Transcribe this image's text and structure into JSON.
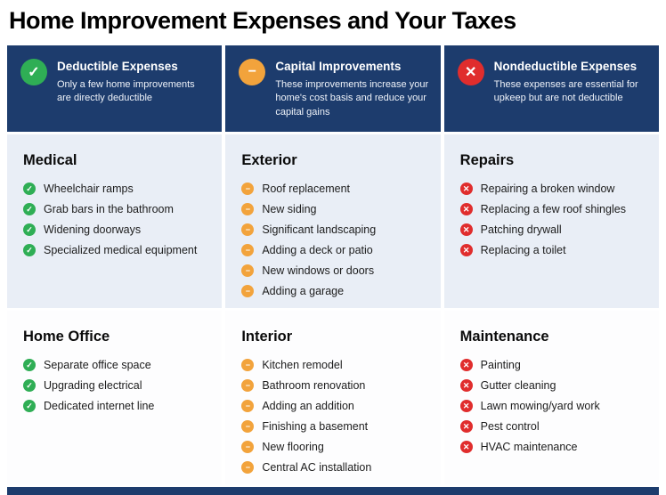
{
  "title": "Home Improvement Expenses and Your Taxes",
  "colors": {
    "navy": "#1d3c6d",
    "green": "#2fae55",
    "orange": "#f2a33c",
    "red": "#e02d2d",
    "row_highlight": "#e9eef6"
  },
  "icons": {
    "check": "✓",
    "minus": "−",
    "x": "✕"
  },
  "columns": [
    {
      "header": "Deductible Expenses",
      "subtitle": "Only a few home improvements are directly deductible",
      "icon": "check-circle",
      "sections": [
        {
          "heading": "Medical",
          "items": [
            "Wheelchair ramps",
            "Grab bars in the bathroom",
            "Widening doorways",
            "Specialized medical equipment"
          ]
        },
        {
          "heading": "Home Office",
          "items": [
            "Separate office space",
            "Upgrading electrical",
            "Dedicated internet line"
          ]
        }
      ]
    },
    {
      "header": "Capital Improvements",
      "subtitle": "These improvements increase your home's cost basis and reduce your capital gains",
      "icon": "minus-circle",
      "sections": [
        {
          "heading": "Exterior",
          "items": [
            "Roof replacement",
            "New siding",
            "Significant landscaping",
            "Adding a deck or patio",
            "New windows or doors",
            "Adding a garage"
          ]
        },
        {
          "heading": "Interior",
          "items": [
            "Kitchen remodel",
            "Bathroom renovation",
            "Adding an addition",
            "Finishing a basement",
            "New flooring",
            "Central AC installation"
          ]
        }
      ]
    },
    {
      "header": "Nondeductible Expenses",
      "subtitle": "These expenses are essential for upkeep but are not deductible",
      "icon": "x-circle",
      "sections": [
        {
          "heading": "Repairs",
          "items": [
            "Repairing a broken window",
            "Replacing a few roof shingles",
            "Patching drywall",
            "Replacing a toilet"
          ]
        },
        {
          "heading": "Maintenance",
          "items": [
            "Painting",
            "Gutter cleaning",
            "Lawn mowing/yard work",
            "Pest control",
            "HVAC maintenance"
          ]
        }
      ]
    }
  ]
}
